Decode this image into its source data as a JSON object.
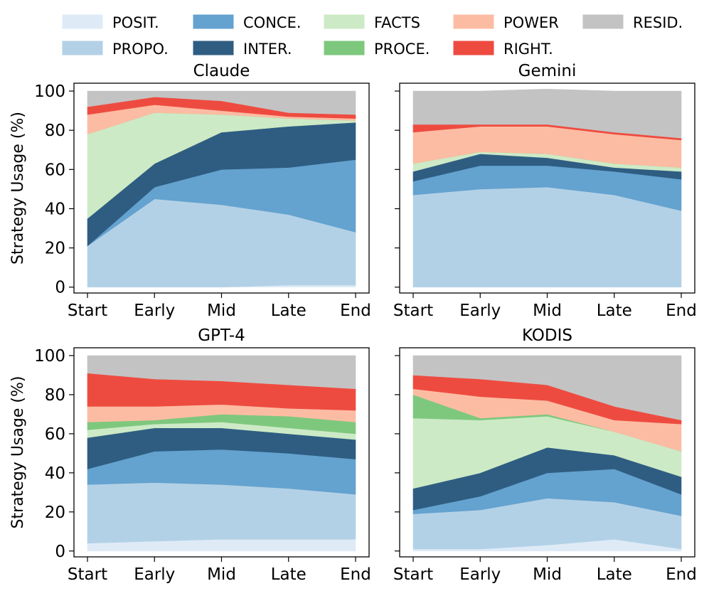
{
  "legend": {
    "items": [
      {
        "key": "POSIT.",
        "label": "POSIT.",
        "color": "#deebf7"
      },
      {
        "key": "PROPO.",
        "label": "PROPO.",
        "color": "#b3d1e6"
      },
      {
        "key": "CONCE.",
        "label": "CONCE.",
        "color": "#64a2cf"
      },
      {
        "key": "INTER.",
        "label": "INTER.",
        "color": "#2f5d82"
      },
      {
        "key": "FACTS",
        "label": "FACTS",
        "color": "#cdeac6"
      },
      {
        "key": "PROCE.",
        "label": "PROCE.",
        "color": "#7ec87e"
      },
      {
        "key": "POWER",
        "label": "POWER",
        "color": "#fcbca3"
      },
      {
        "key": "RIGHT.",
        "label": "RIGHT.",
        "color": "#ee4b40"
      },
      {
        "key": "RESID.",
        "label": "RESID.",
        "color": "#c3c3c3"
      }
    ]
  },
  "chart_data": [
    {
      "type": "area",
      "title": "Claude",
      "ylabel": "Strategy Usage (%)",
      "categories": [
        "Start",
        "Early",
        "Mid",
        "Late",
        "End"
      ],
      "ylim": [
        -3,
        104
      ],
      "yticks": [
        0,
        20,
        40,
        60,
        80,
        100
      ],
      "series": [
        {
          "name": "POSIT.",
          "values": [
            0,
            0,
            0,
            1,
            1
          ]
        },
        {
          "name": "PROPO.",
          "values": [
            21,
            45,
            42,
            36,
            27
          ]
        },
        {
          "name": "CONCE.",
          "values": [
            0,
            6,
            18,
            24,
            37
          ]
        },
        {
          "name": "INTER.",
          "values": [
            14,
            12,
            19,
            21,
            19
          ]
        },
        {
          "name": "FACTS",
          "values": [
            43,
            26,
            9,
            4,
            1
          ]
        },
        {
          "name": "PROCE.",
          "values": [
            0,
            0,
            0,
            0,
            0
          ]
        },
        {
          "name": "POWER",
          "values": [
            10,
            4,
            2,
            1,
            1
          ]
        },
        {
          "name": "RIGHT.",
          "values": [
            4,
            4,
            5,
            2,
            2
          ]
        },
        {
          "name": "RESID.",
          "values": [
            8,
            3,
            5,
            11,
            12
          ]
        }
      ]
    },
    {
      "type": "area",
      "title": "Gemini",
      "ylabel": "",
      "categories": [
        "Start",
        "Early",
        "Mid",
        "Late",
        "End"
      ],
      "ylim": [
        -3,
        104
      ],
      "yticks": [
        0,
        20,
        40,
        60,
        80,
        100
      ],
      "series": [
        {
          "name": "POSIT.",
          "values": [
            0,
            0,
            0,
            0,
            0
          ]
        },
        {
          "name": "PROPO.",
          "values": [
            47,
            50,
            51,
            47,
            39
          ]
        },
        {
          "name": "CONCE.",
          "values": [
            7,
            12,
            11,
            12,
            16
          ]
        },
        {
          "name": "INTER.",
          "values": [
            5,
            6,
            4,
            2,
            4
          ]
        },
        {
          "name": "FACTS",
          "values": [
            4,
            1,
            2,
            2,
            2
          ]
        },
        {
          "name": "PROCE.",
          "values": [
            0,
            0,
            0,
            0,
            0
          ]
        },
        {
          "name": "POWER",
          "values": [
            16,
            13,
            14,
            15,
            14
          ]
        },
        {
          "name": "RIGHT.",
          "values": [
            4,
            1,
            1,
            1,
            1
          ]
        },
        {
          "name": "RESID.",
          "values": [
            17,
            17,
            18,
            21,
            24
          ]
        }
      ]
    },
    {
      "type": "area",
      "title": "GPT-4",
      "ylabel": "Strategy Usage (%)",
      "categories": [
        "Start",
        "Early",
        "Mid",
        "Late",
        "End"
      ],
      "ylim": [
        -3,
        104
      ],
      "yticks": [
        0,
        20,
        40,
        60,
        80,
        100
      ],
      "series": [
        {
          "name": "POSIT.",
          "values": [
            4,
            5,
            6,
            6,
            6
          ]
        },
        {
          "name": "PROPO.",
          "values": [
            30,
            30,
            28,
            26,
            23
          ]
        },
        {
          "name": "CONCE.",
          "values": [
            8,
            16,
            18,
            18,
            18
          ]
        },
        {
          "name": "INTER.",
          "values": [
            16,
            12,
            11,
            10,
            10
          ]
        },
        {
          "name": "FACTS",
          "values": [
            4,
            2,
            3,
            3,
            3
          ]
        },
        {
          "name": "PROCE.",
          "values": [
            4,
            2,
            4,
            6,
            6
          ]
        },
        {
          "name": "POWER",
          "values": [
            8,
            7,
            5,
            4,
            6
          ]
        },
        {
          "name": "RIGHT.",
          "values": [
            17,
            14,
            12,
            12,
            11
          ]
        },
        {
          "name": "RESID.",
          "values": [
            9,
            12,
            13,
            15,
            17
          ]
        }
      ]
    },
    {
      "type": "area",
      "title": "KODIS",
      "ylabel": "",
      "categories": [
        "Start",
        "Early",
        "Mid",
        "Late",
        "End"
      ],
      "ylim": [
        -3,
        104
      ],
      "yticks": [
        0,
        20,
        40,
        60,
        80,
        100
      ],
      "series": [
        {
          "name": "POSIT.",
          "values": [
            1,
            1,
            3,
            6,
            1
          ]
        },
        {
          "name": "PROPO.",
          "values": [
            18,
            20,
            24,
            19,
            17
          ]
        },
        {
          "name": "CONCE.",
          "values": [
            2,
            7,
            13,
            17,
            11
          ]
        },
        {
          "name": "INTER.",
          "values": [
            11,
            12,
            13,
            7,
            9
          ]
        },
        {
          "name": "FACTS",
          "values": [
            36,
            27,
            16,
            12,
            13
          ]
        },
        {
          "name": "PROCE.",
          "values": [
            12,
            1,
            1,
            0,
            0
          ]
        },
        {
          "name": "POWER",
          "values": [
            3,
            11,
            7,
            6,
            14
          ]
        },
        {
          "name": "RIGHT.",
          "values": [
            7,
            9,
            8,
            7,
            2
          ]
        },
        {
          "name": "RESID.",
          "values": [
            10,
            12,
            15,
            26,
            33
          ]
        }
      ]
    }
  ]
}
